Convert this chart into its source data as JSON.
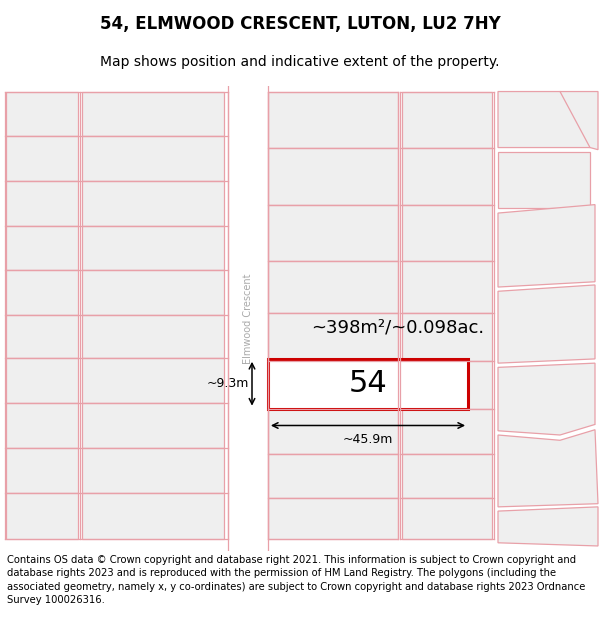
{
  "title": "54, ELMWOOD CRESCENT, LUTON, LU2 7HY",
  "subtitle": "Map shows position and indicative extent of the property.",
  "footer": "Contains OS data © Crown copyright and database right 2021. This information is subject to Crown copyright and database rights 2023 and is reproduced with the permission of HM Land Registry. The polygons (including the associated geometry, namely x, y co-ordinates) are subject to Crown copyright and database rights 2023 Ordnance Survey 100026316.",
  "bg_color": "#ffffff",
  "plot_fill": "#efefef",
  "edge_color": "#e8a0a8",
  "highlight_edge": "#cc0000",
  "highlight_fill": "#ffffff",
  "area_label": "~398m²/~0.098ac.",
  "number_label": "54",
  "width_label": "~45.9m",
  "height_label": "~9.3m",
  "street_label": "Elmwood Crescent",
  "title_fs": 12,
  "subtitle_fs": 10,
  "footer_fs": 7.2,
  "annot_fs": 9,
  "area_fs": 13,
  "number_fs": 22,
  "street_fs": 7
}
